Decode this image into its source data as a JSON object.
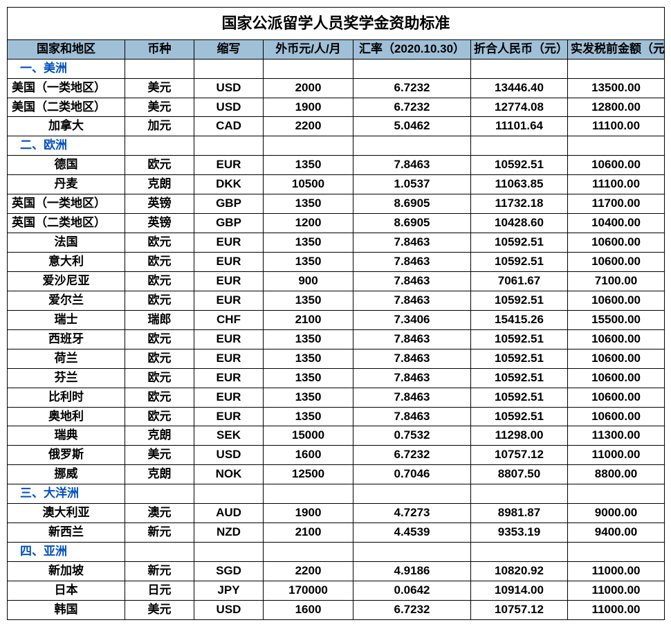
{
  "title": "国家公派留学人员奖学金资助标准",
  "header_bg": "#a0c0d8",
  "section_color": "#0050c0",
  "columns": [
    "国家和地区",
    "币种",
    "缩写",
    "外币元/人/月",
    "汇率（2020.10.30）",
    "折合人民币（元）",
    "实发税前金额（元）"
  ],
  "rows": [
    {
      "type": "section",
      "label": "一、美洲"
    },
    {
      "type": "data",
      "cells": [
        "美国（一类地区）",
        "美元",
        "USD",
        "2000",
        "6.7232",
        "13446.40",
        "13500.00"
      ],
      "left": true
    },
    {
      "type": "data",
      "cells": [
        "美国（二类地区）",
        "美元",
        "USD",
        "1900",
        "6.7232",
        "12774.08",
        "12800.00"
      ],
      "left": true
    },
    {
      "type": "data",
      "cells": [
        "加拿大",
        "加元",
        "CAD",
        "2200",
        "5.0462",
        "11101.64",
        "11100.00"
      ]
    },
    {
      "type": "section",
      "label": "二、欧洲"
    },
    {
      "type": "data",
      "cells": [
        "德国",
        "欧元",
        "EUR",
        "1350",
        "7.8463",
        "10592.51",
        "10600.00"
      ]
    },
    {
      "type": "data",
      "cells": [
        "丹麦",
        "克朗",
        "DKK",
        "10500",
        "1.0537",
        "11063.85",
        "11100.00"
      ]
    },
    {
      "type": "data",
      "cells": [
        "英国（一类地区）",
        "英镑",
        "GBP",
        "1350",
        "8.6905",
        "11732.18",
        "11700.00"
      ],
      "left": true
    },
    {
      "type": "data",
      "cells": [
        "英国（二类地区）",
        "英镑",
        "GBP",
        "1200",
        "8.6905",
        "10428.60",
        "10400.00"
      ],
      "left": true
    },
    {
      "type": "data",
      "cells": [
        "法国",
        "欧元",
        "EUR",
        "1350",
        "7.8463",
        "10592.51",
        "10600.00"
      ]
    },
    {
      "type": "data",
      "cells": [
        "意大利",
        "欧元",
        "EUR",
        "1350",
        "7.8463",
        "10592.51",
        "10600.00"
      ]
    },
    {
      "type": "data",
      "cells": [
        "爱沙尼亚",
        "欧元",
        "EUR",
        "900",
        "7.8463",
        "7061.67",
        "7100.00"
      ]
    },
    {
      "type": "data",
      "cells": [
        "爱尔兰",
        "欧元",
        "EUR",
        "1350",
        "7.8463",
        "10592.51",
        "10600.00"
      ]
    },
    {
      "type": "data",
      "cells": [
        "瑞士",
        "瑞郎",
        "CHF",
        "2100",
        "7.3406",
        "15415.26",
        "15500.00"
      ]
    },
    {
      "type": "data",
      "cells": [
        "西班牙",
        "欧元",
        "EUR",
        "1350",
        "7.8463",
        "10592.51",
        "10600.00"
      ]
    },
    {
      "type": "data",
      "cells": [
        "荷兰",
        "欧元",
        "EUR",
        "1350",
        "7.8463",
        "10592.51",
        "10600.00"
      ]
    },
    {
      "type": "data",
      "cells": [
        "芬兰",
        "欧元",
        "EUR",
        "1350",
        "7.8463",
        "10592.51",
        "10600.00"
      ]
    },
    {
      "type": "data",
      "cells": [
        "比利时",
        "欧元",
        "EUR",
        "1350",
        "7.8463",
        "10592.51",
        "10600.00"
      ]
    },
    {
      "type": "data",
      "cells": [
        "奥地利",
        "欧元",
        "EUR",
        "1350",
        "7.8463",
        "10592.51",
        "10600.00"
      ]
    },
    {
      "type": "data",
      "cells": [
        "瑞典",
        "克朗",
        "SEK",
        "15000",
        "0.7532",
        "11298.00",
        "11300.00"
      ]
    },
    {
      "type": "data",
      "cells": [
        "俄罗斯",
        "美元",
        "USD",
        "1600",
        "6.7232",
        "10757.12",
        "11000.00"
      ]
    },
    {
      "type": "data",
      "cells": [
        "挪威",
        "克朗",
        "NOK",
        "12500",
        "0.7046",
        "8807.50",
        "8800.00"
      ]
    },
    {
      "type": "section",
      "label": "三、大洋洲"
    },
    {
      "type": "data",
      "cells": [
        "澳大利亚",
        "澳元",
        "AUD",
        "1900",
        "4.7273",
        "8981.87",
        "9000.00"
      ]
    },
    {
      "type": "data",
      "cells": [
        "新西兰",
        "新元",
        "NZD",
        "2100",
        "4.4539",
        "9353.19",
        "9400.00"
      ]
    },
    {
      "type": "section",
      "label": "四、亚洲"
    },
    {
      "type": "data",
      "cells": [
        "新加坡",
        "新元",
        "SGD",
        "2200",
        "4.9186",
        "10820.92",
        "11000.00"
      ]
    },
    {
      "type": "data",
      "cells": [
        "日本",
        "日元",
        "JPY",
        "170000",
        "0.0642",
        "10914.00",
        "11000.00"
      ]
    },
    {
      "type": "data",
      "cells": [
        "韩国",
        "美元",
        "USD",
        "1600",
        "6.7232",
        "10757.12",
        "11000.00"
      ]
    }
  ]
}
